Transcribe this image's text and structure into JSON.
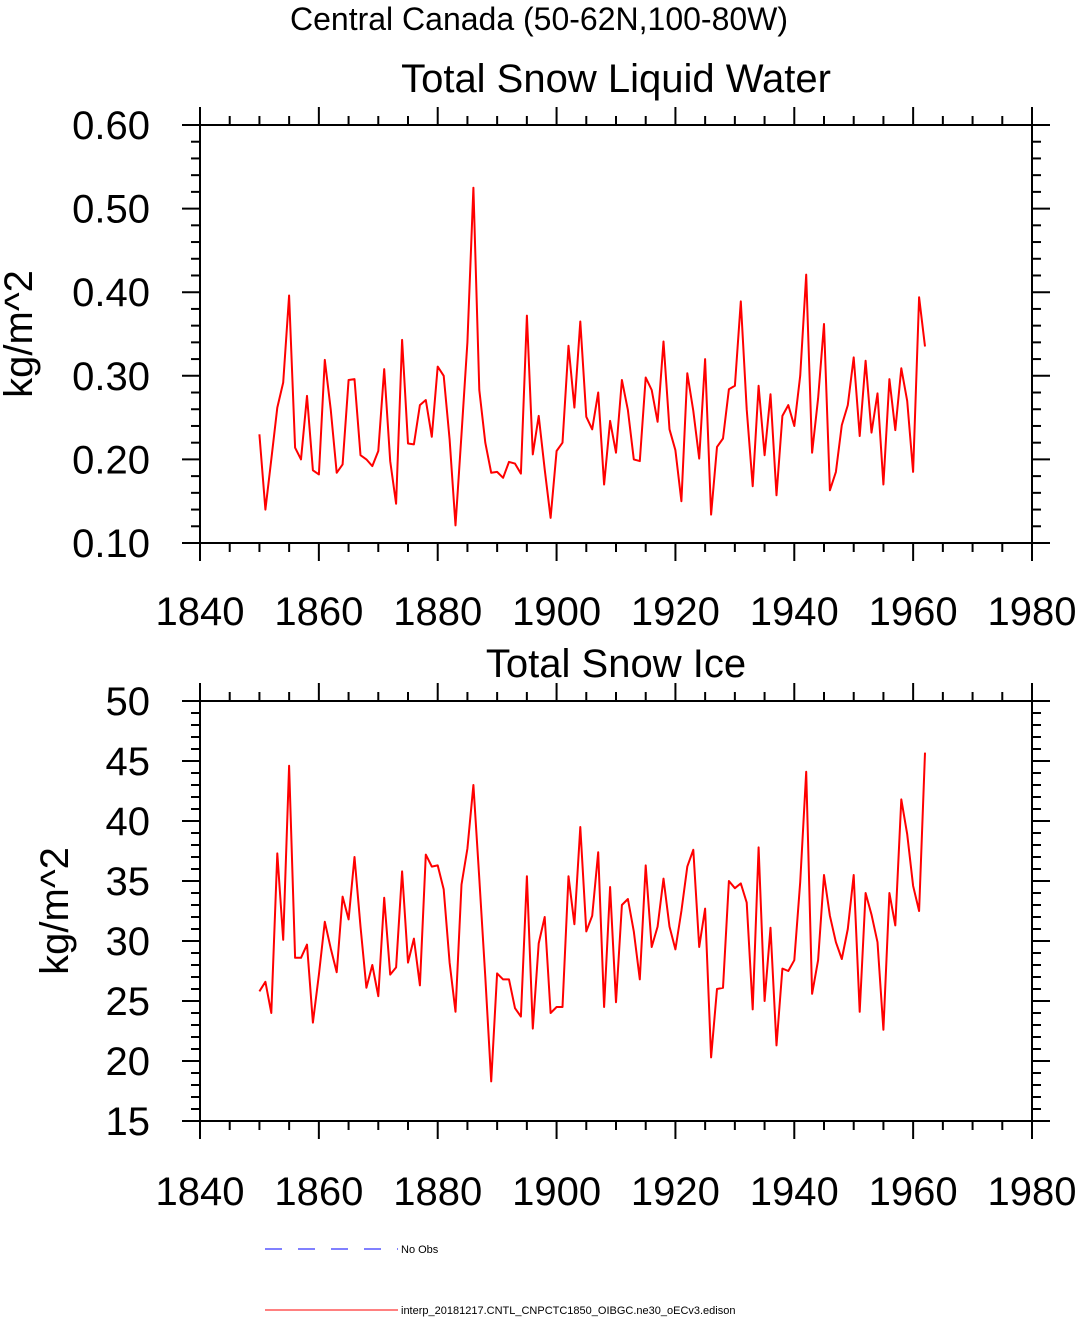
{
  "page_title": "Central Canada (50-62N,100-80W)",
  "colors": {
    "model_line": "#ff0000",
    "obs_line": "#0000ff",
    "frame": "#000000"
  },
  "legend": [
    {
      "label": "No Obs",
      "style": "dashed",
      "color": "#0000ff"
    },
    {
      "label": "interp_20181217.CNTL_CNPCTC1850_OIBGC.ne30_oECv3.edison",
      "style": "solid",
      "color": "#ff0000"
    }
  ],
  "chart_data": [
    {
      "type": "line",
      "title": "Total Snow Liquid Water",
      "ylabel": "kg/m^2",
      "xlabel": "",
      "xlim": [
        1840,
        1980
      ],
      "ylim": [
        0.1,
        0.6
      ],
      "xticks": [
        "1840",
        "1860",
        "1880",
        "1900",
        "1920",
        "1940",
        "1960",
        "1980"
      ],
      "yticks": [
        "0.10",
        "0.20",
        "0.30",
        "0.40",
        "0.50",
        "0.60"
      ],
      "grid": false,
      "series": [
        {
          "color": "#ff0000",
          "x_start": 1850,
          "x_step": 1,
          "values": [
            0.23,
            0.14,
            0.2,
            0.262,
            0.292,
            0.396,
            0.214,
            0.2,
            0.276,
            0.187,
            0.182,
            0.319,
            0.26,
            0.184,
            0.194,
            0.295,
            0.296,
            0.205,
            0.2,
            0.192,
            0.21,
            0.308,
            0.198,
            0.147,
            0.343,
            0.219,
            0.218,
            0.265,
            0.271,
            0.227,
            0.311,
            0.3,
            0.224,
            0.121,
            0.23,
            0.34,
            0.525,
            0.283,
            0.22,
            0.184,
            0.185,
            0.178,
            0.197,
            0.195,
            0.183,
            0.372,
            0.206,
            0.252,
            0.188,
            0.13,
            0.21,
            0.22,
            0.336,
            0.262,
            0.365,
            0.251,
            0.236,
            0.28,
            0.17,
            0.246,
            0.208,
            0.295,
            0.259,
            0.2,
            0.198,
            0.298,
            0.283,
            0.245,
            0.341,
            0.236,
            0.211,
            0.15,
            0.303,
            0.258,
            0.201,
            0.32,
            0.134,
            0.215,
            0.225,
            0.284,
            0.288,
            0.389,
            0.26,
            0.168,
            0.288,
            0.205,
            0.278,
            0.157,
            0.252,
            0.265,
            0.24,
            0.3,
            0.421,
            0.208,
            0.273,
            0.362,
            0.163,
            0.185,
            0.241,
            0.265,
            0.322,
            0.228,
            0.318,
            0.232,
            0.279,
            0.17,
            0.296,
            0.235,
            0.309,
            0.27,
            0.185,
            0.394,
            0.335
          ]
        }
      ]
    },
    {
      "type": "line",
      "title": "Total Snow Ice",
      "ylabel": "kg/m^2",
      "xlabel": "",
      "xlim": [
        1840,
        1980
      ],
      "ylim": [
        15,
        50
      ],
      "xticks": [
        "1840",
        "1860",
        "1880",
        "1900",
        "1920",
        "1940",
        "1960",
        "1980"
      ],
      "yticks": [
        "15",
        "20",
        "25",
        "30",
        "35",
        "40",
        "45",
        "50"
      ],
      "grid": false,
      "series": [
        {
          "color": "#ff0000",
          "x_start": 1850,
          "x_step": 1,
          "values": [
            25.8,
            26.6,
            24.0,
            37.3,
            30.1,
            44.6,
            28.6,
            28.6,
            29.7,
            23.2,
            27.2,
            31.6,
            29.4,
            27.4,
            33.7,
            31.8,
            37.0,
            31.2,
            26.1,
            28.0,
            25.4,
            33.6,
            27.2,
            27.8,
            35.8,
            28.2,
            30.2,
            26.3,
            37.2,
            36.2,
            36.3,
            34.3,
            28.2,
            24.1,
            34.7,
            37.7,
            43.0,
            35.2,
            27.0,
            18.3,
            27.3,
            26.8,
            26.8,
            24.4,
            23.7,
            35.4,
            22.7,
            29.8,
            32.0,
            24.0,
            24.5,
            24.5,
            35.4,
            31.4,
            39.5,
            30.8,
            32.1,
            37.4,
            24.5,
            34.5,
            24.9,
            33.0,
            33.5,
            30.8,
            26.8,
            36.3,
            29.5,
            31.2,
            35.2,
            31.2,
            29.3,
            32.5,
            36.2,
            37.6,
            29.5,
            32.7,
            20.3,
            26.0,
            26.1,
            35.0,
            34.4,
            34.8,
            33.2,
            24.3,
            37.8,
            25.0,
            31.1,
            21.3,
            27.7,
            27.5,
            28.4,
            34.9,
            44.1,
            25.6,
            28.4,
            35.5,
            32.1,
            29.9,
            28.5,
            31.0,
            35.5,
            24.1,
            34.0,
            32.2,
            29.9,
            22.6,
            34.0,
            31.3,
            41.8,
            38.9,
            34.6,
            32.5,
            45.7
          ]
        }
      ]
    }
  ]
}
